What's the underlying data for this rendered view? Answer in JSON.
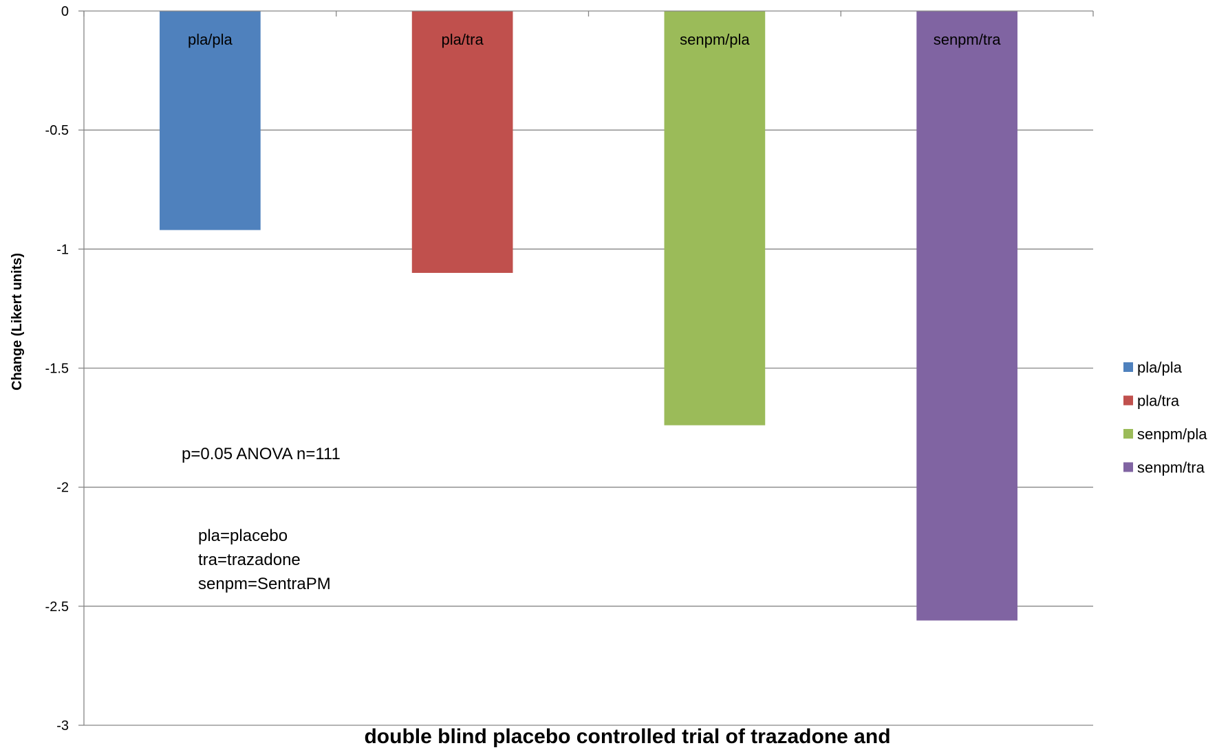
{
  "chart_data": {
    "type": "bar",
    "categories": [
      "pla/pla",
      "pla/tra",
      "senpm/pla",
      "senpm/tra"
    ],
    "values": [
      -0.92,
      -1.1,
      -1.74,
      -2.56
    ],
    "colors": [
      "#4F81BD",
      "#C0504D",
      "#9BBB59",
      "#8064A2"
    ],
    "data_labels": [
      "pla/pla",
      "pla/tra",
      "senpm/pla",
      "senpm/tra"
    ],
    "ylabel": "Change (Likert units)",
    "xlabel": "double blind placebo controlled trial of trazadone and",
    "ylim": [
      -3,
      0
    ],
    "yticks": [
      0,
      -0.5,
      -1,
      -1.5,
      -2,
      -2.5,
      -3
    ],
    "ytick_labels": [
      "0",
      "-0.5",
      "-1",
      "-1.5",
      "-2",
      "-2.5",
      "-3"
    ],
    "grid": true,
    "legend": {
      "placement": "right",
      "entries": [
        "pla/pla",
        "pla/tra",
        "senpm/pla",
        "senpm/tra"
      ]
    },
    "annotations": [
      "p=0.05 ANOVA n=111",
      "pla=placebo",
      "tra=trazadone",
      "senpm=SentraPM"
    ]
  }
}
